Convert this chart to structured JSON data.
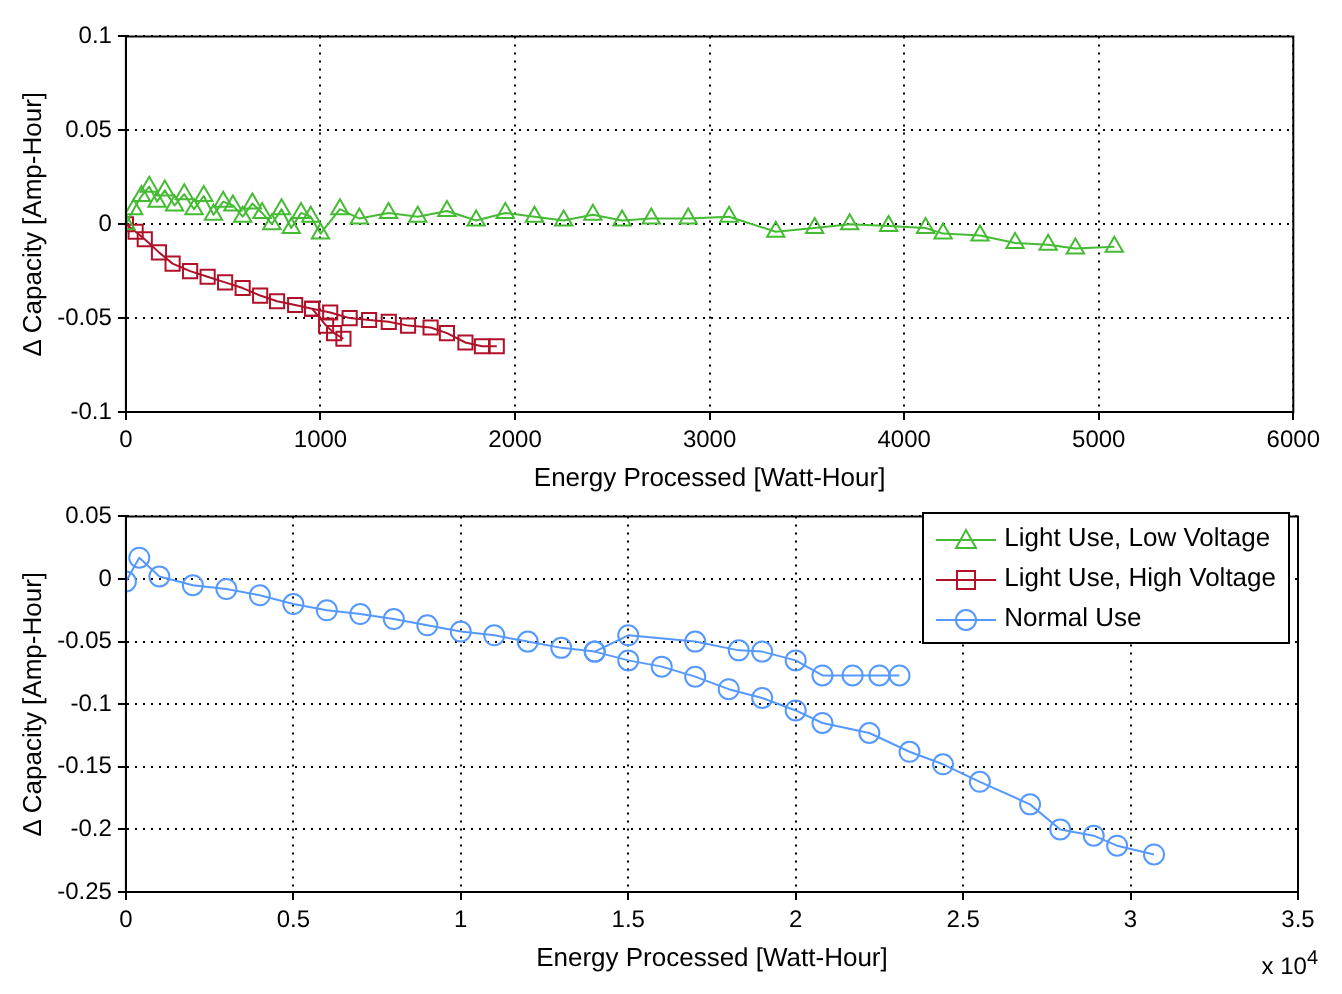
{
  "chart_data": [
    {
      "type": "line",
      "xlabel": "Energy Processed [Watt-Hour]",
      "ylabel": "Δ Capacity [Amp-Hour]",
      "xlim": [
        0,
        6000
      ],
      "xticks": [
        0,
        1000,
        2000,
        3000,
        4000,
        5000,
        6000
      ],
      "ylim": [
        -0.1,
        0.1
      ],
      "yticks": [
        -0.1,
        -0.05,
        0,
        0.05,
        0.1
      ],
      "grid": true,
      "legend": false,
      "series": [
        {
          "name": "Light Use, Low Voltage",
          "color": "#44bb33",
          "marker": "triangle",
          "x": [
            0,
            40,
            80,
            120,
            160,
            200,
            250,
            300,
            350,
            400,
            450,
            500,
            550,
            600,
            650,
            700,
            750,
            800,
            850,
            900,
            950,
            1000,
            1100,
            1200,
            1350,
            1500,
            1650,
            1800,
            1950,
            2100,
            2250,
            2400,
            2550,
            2700,
            2890,
            3100,
            3340,
            3540,
            3720,
            3920,
            4110,
            4200,
            4390,
            4570,
            4740,
            4880,
            5080
          ],
          "values": [
            0,
            0.008,
            0.015,
            0.02,
            0.012,
            0.018,
            0.01,
            0.016,
            0.008,
            0.015,
            0.005,
            0.012,
            0.01,
            0.004,
            0.011,
            0.006,
            0,
            0.008,
            -0.002,
            0.006,
            0.004,
            -0.005,
            0.008,
            0.003,
            0.006,
            0.004,
            0.007,
            0.002,
            0.006,
            0.004,
            0.002,
            0.005,
            0.002,
            0.003,
            0.003,
            0.004,
            -0.004,
            -0.002,
            0,
            -0.001,
            -0.002,
            -0.005,
            -0.006,
            -0.01,
            -0.011,
            -0.013,
            -0.012
          ]
        },
        {
          "name": "Light Use, High Voltage",
          "color": "#b01028",
          "marker": "square",
          "x": [
            0,
            50,
            97,
            170,
            240,
            330,
            420,
            510,
            600,
            690,
            777,
            870,
            957,
            1029,
            1070,
            1118
          ],
          "values": [
            0,
            -0.004,
            -0.008,
            -0.015,
            -0.021,
            -0.025,
            -0.028,
            -0.031,
            -0.034,
            -0.038,
            -0.041,
            -0.043,
            -0.045,
            -0.054,
            -0.058,
            -0.061
          ]
        },
        {
          "color": "#b01028",
          "marker": "square",
          "x": [
            957,
            1050,
            1150,
            1250,
            1351,
            1450,
            1566,
            1650,
            1745,
            1830,
            1906
          ],
          "values": [
            -0.045,
            -0.047,
            -0.05,
            -0.051,
            -0.052,
            -0.054,
            -0.055,
            -0.058,
            -0.063,
            -0.065,
            -0.065
          ]
        }
      ]
    },
    {
      "type": "line",
      "xlabel": "Energy Processed [Watt-Hour]",
      "ylabel": "Δ Capacity [Amp-Hour]",
      "xlim": [
        0,
        3.5
      ],
      "xticks": [
        0,
        0.5,
        1,
        1.5,
        2,
        2.5,
        3,
        3.5
      ],
      "ylim": [
        -0.25,
        0.05
      ],
      "yticks": [
        -0.25,
        -0.2,
        -0.15,
        -0.1,
        -0.05,
        0,
        0.05
      ],
      "grid": true,
      "legend": "top right",
      "annotations": [
        "x 10$^{4}$"
      ],
      "series": [
        {
          "name": "Normal Use",
          "color": "#5599ff",
          "marker": "circle",
          "x": [
            0,
            0.04,
            0.1,
            0.2,
            0.3,
            0.4,
            0.5,
            0.6,
            0.7,
            0.8,
            0.9,
            1.0,
            1.1,
            1.2,
            1.3,
            1.4,
            1.5,
            1.7,
            1.83,
            1.9,
            2.0,
            2.08,
            2.17,
            2.25,
            2.31
          ],
          "values": [
            -0.002,
            0.017,
            0.002,
            -0.005,
            -0.008,
            -0.013,
            -0.02,
            -0.025,
            -0.028,
            -0.032,
            -0.037,
            -0.042,
            -0.045,
            -0.05,
            -0.055,
            -0.058,
            -0.045,
            -0.05,
            -0.057,
            -0.058,
            -0.065,
            -0.077,
            -0.077,
            -0.077,
            -0.077
          ]
        },
        {
          "color": "#5599ff",
          "marker": "circle",
          "x": [
            1.4,
            1.5,
            1.6,
            1.7,
            1.8,
            1.9,
            2.0,
            2.08,
            2.22,
            2.34,
            2.44,
            2.55,
            2.7,
            2.79,
            2.89,
            2.96,
            3.07
          ],
          "values": [
            -0.058,
            -0.065,
            -0.07,
            -0.078,
            -0.088,
            -0.095,
            -0.105,
            -0.115,
            -0.123,
            -0.138,
            -0.148,
            -0.162,
            -0.18,
            -0.2,
            -0.205,
            -0.213,
            -0.22
          ]
        }
      ]
    }
  ]
}
